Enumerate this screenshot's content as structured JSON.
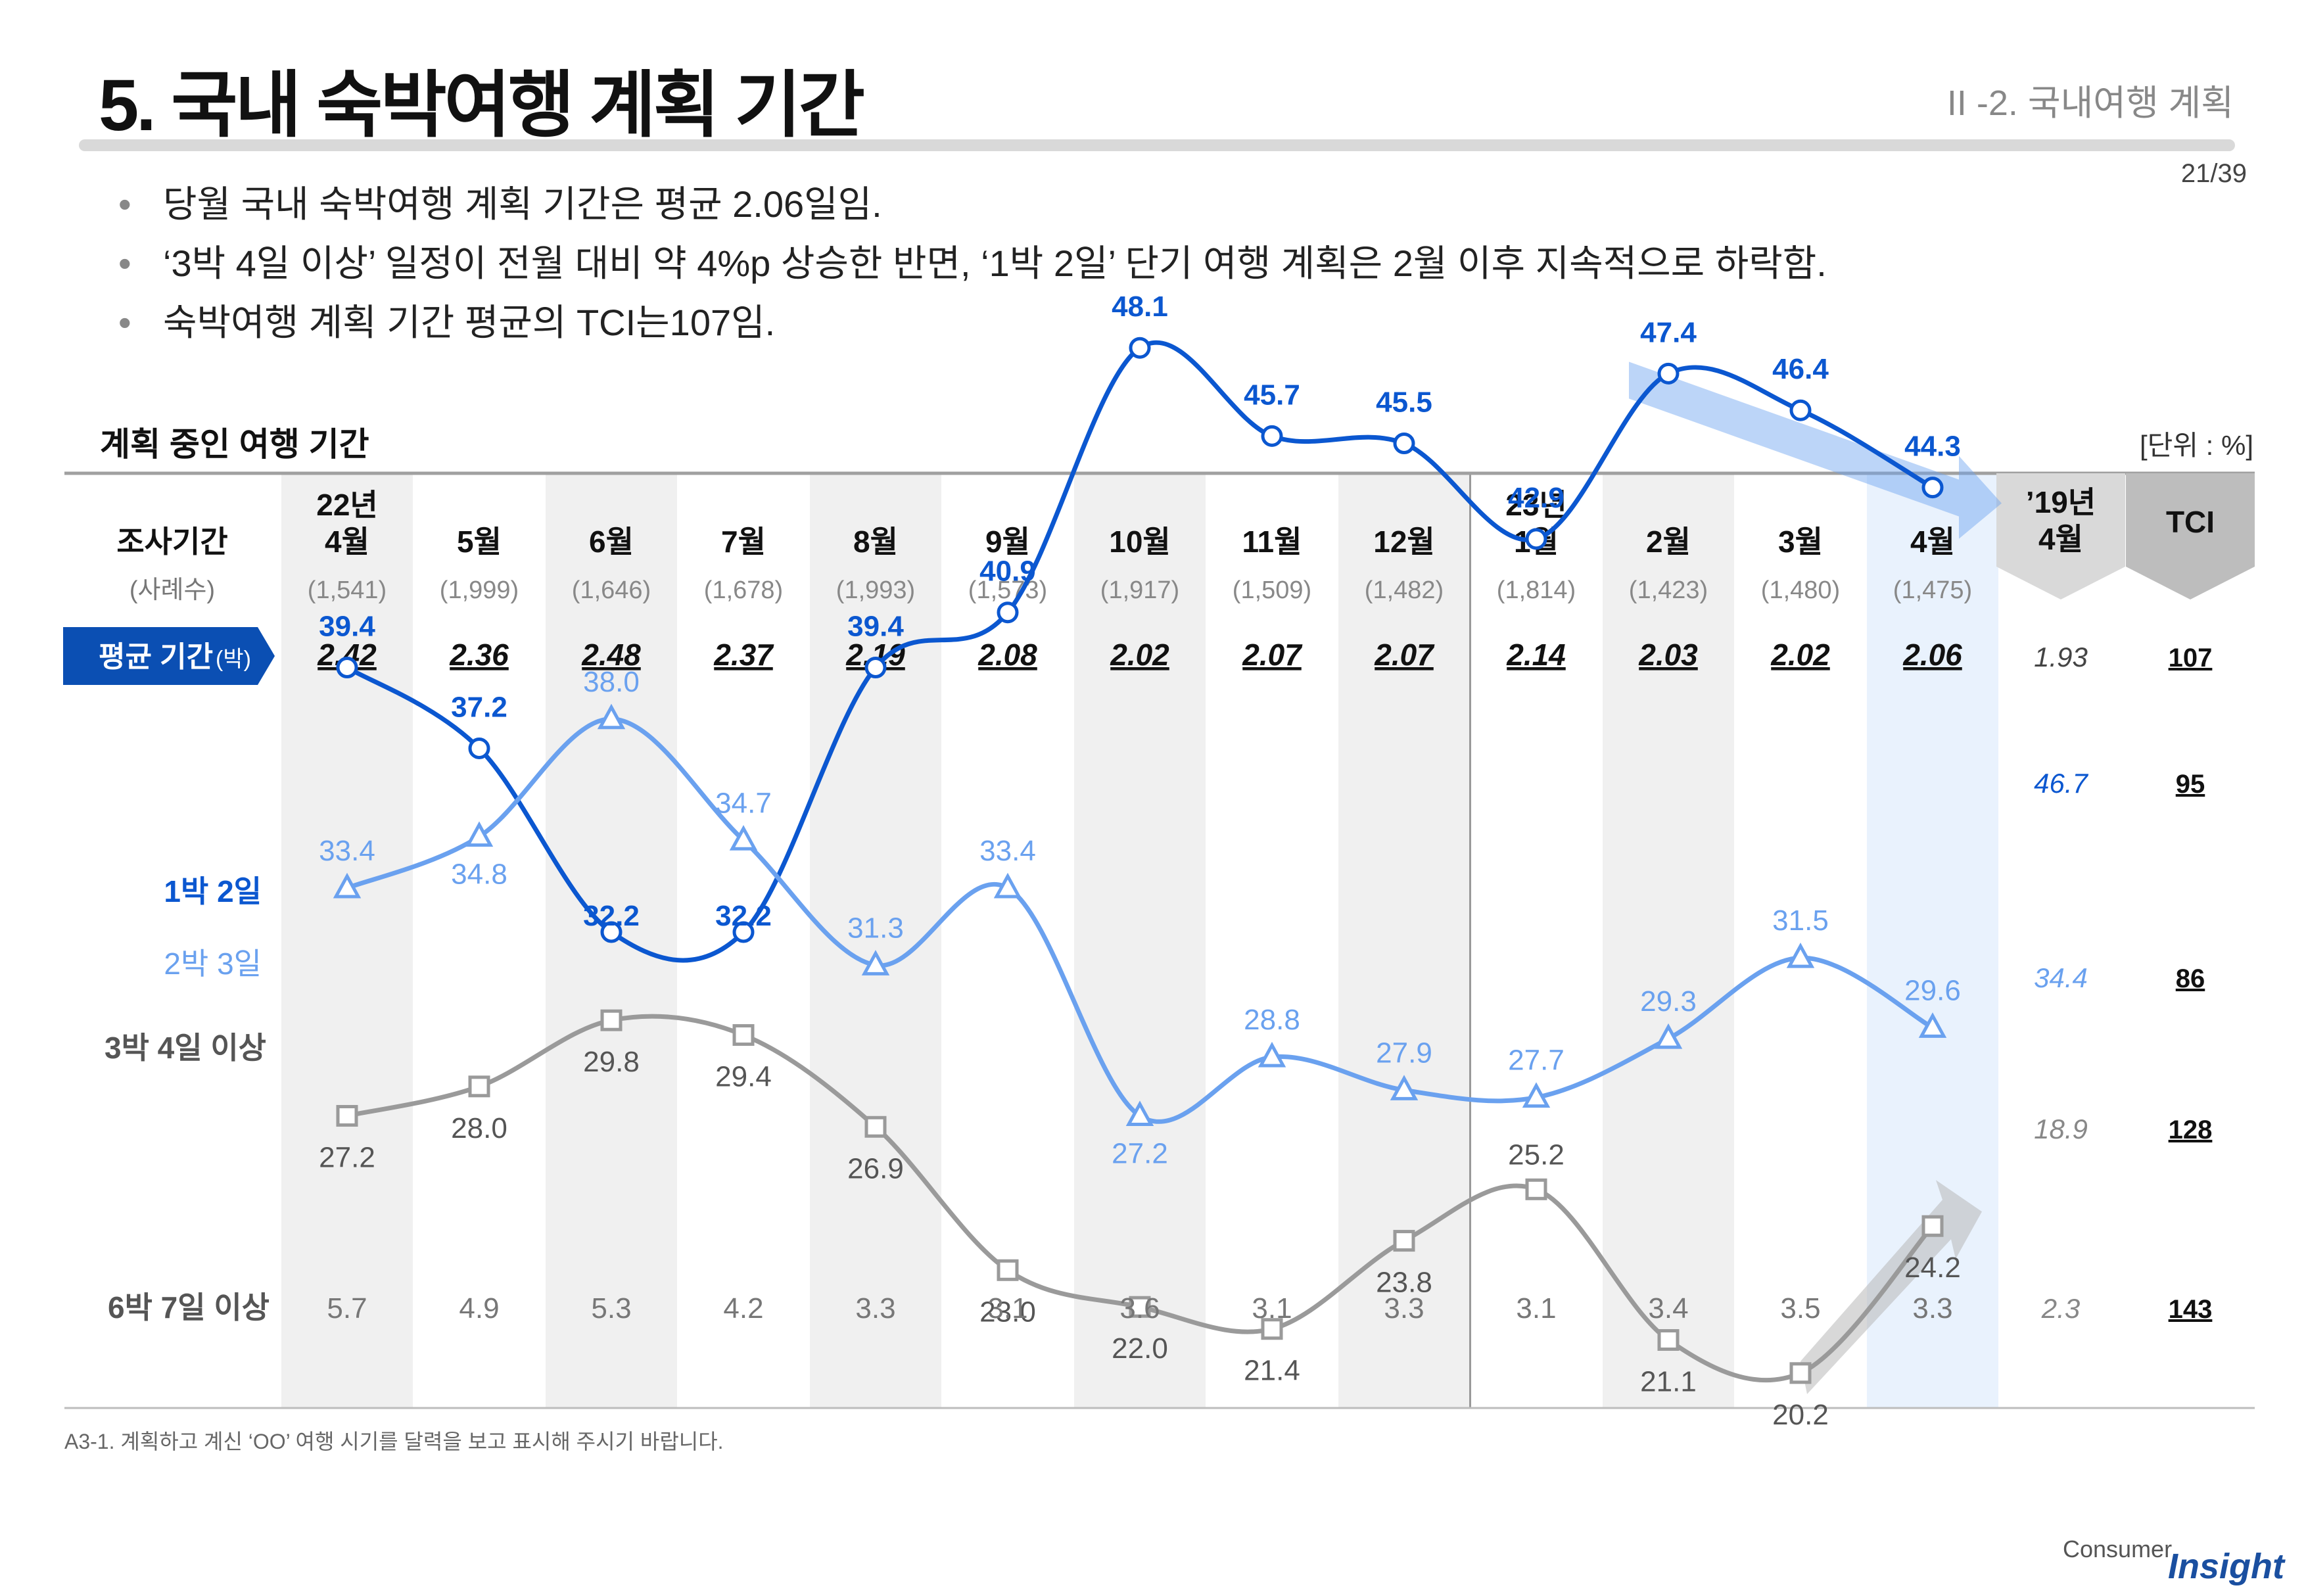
{
  "header": {
    "title": "5. 국내 숙박여행 계획 기간",
    "section": "II -2. 국내여행 계획",
    "page": "21/39"
  },
  "bullets": [
    "당월 국내 숙박여행 계획 기간은 평균 2.06일임.",
    "‘3박 4일 이상’ 일정이 전월 대비 약 4%p 상승한 반면, ‘1박 2일’ 단기 여행 계획은 2월 이후 지속적으로 하락함.",
    "숙박여행 계획 기간 평균의 TCI는107임."
  ],
  "bullet_mark": "•",
  "footnote": "A3-1. 계획하고 계신 ‘OO’ 여행 시기를 달력을 보고 표시해 주시기 바랍니다.",
  "logo": {
    "consumer": "Consumer",
    "insight": "Insight"
  },
  "colors": {
    "blue": "#0b57d0",
    "lightblue": "#6aa1ef",
    "gray": "#9a9a9a",
    "badge": "#0b4fb3",
    "shade": "#f0f0f0",
    "highlight": "#e9f2fd"
  },
  "chart_data": {
    "type": "line",
    "title": "계획 중인 여행 기간",
    "unit": "[단위 : %]",
    "header_label": "조사기간",
    "sample_label": "(사례수)",
    "avg_label": "평균 기간",
    "avg_unit": "(박)",
    "categories": [
      {
        "year": "22년",
        "month": "4월",
        "n": "(1,541)"
      },
      {
        "year": "",
        "month": "5월",
        "n": "(1,999)"
      },
      {
        "year": "",
        "month": "6월",
        "n": "(1,646)"
      },
      {
        "year": "",
        "month": "7월",
        "n": "(1,678)"
      },
      {
        "year": "",
        "month": "8월",
        "n": "(1,993)"
      },
      {
        "year": "",
        "month": "9월",
        "n": "(1,573)"
      },
      {
        "year": "",
        "month": "10월",
        "n": "(1,917)"
      },
      {
        "year": "",
        "month": "11월",
        "n": "(1,509)"
      },
      {
        "year": "",
        "month": "12월",
        "n": "(1,482)"
      },
      {
        "year": "23년",
        "month": "1월",
        "n": "(1,814)"
      },
      {
        "year": "",
        "month": "2월",
        "n": "(1,423)"
      },
      {
        "year": "",
        "month": "3월",
        "n": "(1,480)"
      },
      {
        "year": "",
        "month": "4월",
        "n": "(1,475)"
      }
    ],
    "avg": [
      "2.42",
      "2.36",
      "2.48",
      "2.37",
      "2.19",
      "2.08",
      "2.02",
      "2.07",
      "2.07",
      "2.14",
      "2.03",
      "2.02",
      "2.06"
    ],
    "series": [
      {
        "name": "1박 2일",
        "values": [
          39.4,
          37.2,
          32.2,
          32.2,
          39.4,
          40.9,
          48.1,
          45.7,
          45.5,
          42.9,
          47.4,
          46.4,
          44.3
        ]
      },
      {
        "name": "2박 3일",
        "values": [
          33.4,
          34.8,
          38.0,
          34.7,
          31.3,
          33.4,
          27.2,
          28.8,
          27.9,
          27.7,
          29.3,
          31.5,
          29.6
        ]
      },
      {
        "name": "3박 4일 이상",
        "values": [
          27.2,
          28.0,
          29.8,
          29.4,
          26.9,
          23.0,
          22.0,
          21.4,
          23.8,
          25.2,
          21.1,
          20.2,
          24.2
        ]
      },
      {
        "name": "6박 7일 이상",
        "values": [
          5.7,
          4.9,
          5.3,
          4.2,
          3.3,
          3.1,
          3.6,
          3.1,
          3.3,
          3.1,
          3.4,
          3.5,
          3.3
        ]
      }
    ],
    "ref_label": {
      "year": "’19년",
      "month": "4월"
    },
    "ref": {
      "avg": "1.93",
      "values": [
        "46.7",
        "34.4",
        "18.9",
        "2.3"
      ]
    },
    "tci_label": "TCI",
    "tci": {
      "avg": "107",
      "values": [
        "95",
        "86",
        "128",
        "143"
      ]
    }
  }
}
